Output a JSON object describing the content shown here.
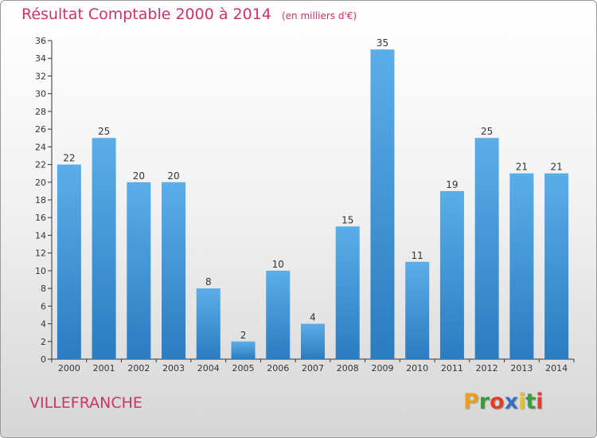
{
  "header": {
    "title": "Résultat Comptable 2000 à 2014",
    "subtitle": "(en milliers d'€)"
  },
  "footer": {
    "commune": "VILLEFRANCHE",
    "logo_text": "Proxiti",
    "logo_colors": [
      "#e8a020",
      "#3a9c3a",
      "#e0402a",
      "#3a6fc0",
      "#e8c020",
      "#3a9c3a",
      "#e0402a"
    ]
  },
  "colors": {
    "title": "#cc3366",
    "bar_light": "#5aaee8",
    "bar_dark": "#2b7cc0",
    "axis": "#333333",
    "grid": "#bdbdbd"
  },
  "chart_data": {
    "type": "bar",
    "title": "Résultat Comptable 2000 à 2014",
    "subtitle": "(en milliers d'€)",
    "xlabel": "",
    "ylabel": "",
    "categories": [
      "2000",
      "2001",
      "2002",
      "2003",
      "2004",
      "2005",
      "2006",
      "2007",
      "2008",
      "2009",
      "2010",
      "2011",
      "2012",
      "2013",
      "2014"
    ],
    "values": [
      22,
      25,
      20,
      20,
      8,
      2,
      10,
      4,
      15,
      35,
      11,
      19,
      25,
      21,
      21
    ],
    "ylim": [
      0,
      36
    ],
    "yticks": [
      0,
      2,
      4,
      6,
      8,
      10,
      12,
      14,
      16,
      18,
      20,
      22,
      24,
      26,
      28,
      30,
      32,
      34,
      36
    ],
    "grid": false,
    "data_labels": true
  }
}
